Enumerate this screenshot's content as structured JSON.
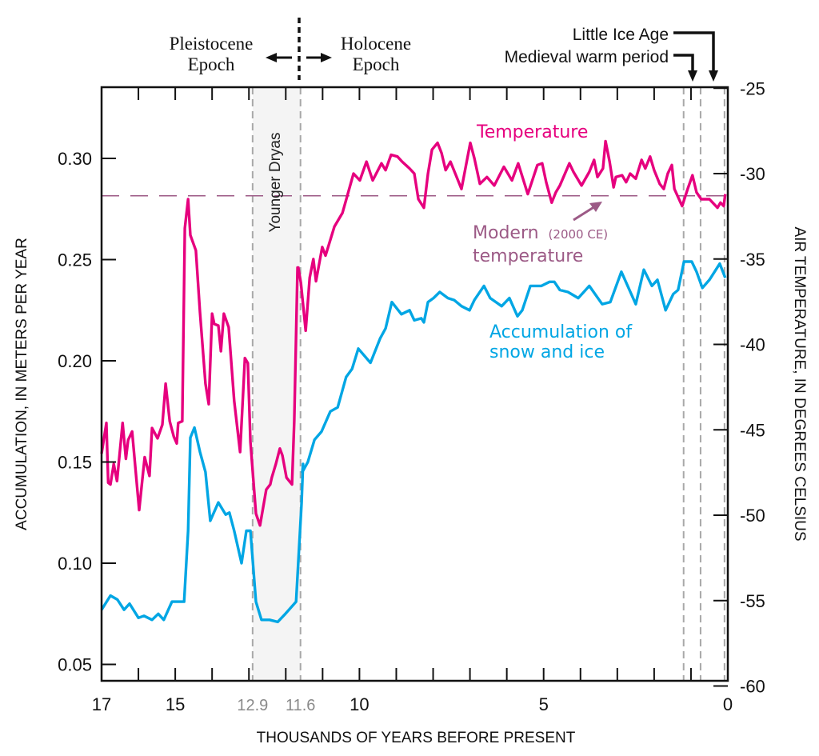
{
  "chart_data": {
    "type": "line",
    "xlabel": "THOUSANDS OF YEARS BEFORE PRESENT",
    "ylabel_left": "ACCUMULATION, IN METERS PER YEAR",
    "ylabel_right": "AIR TEMPERATURE, IN DEGREES CELSIUS",
    "xlim": [
      17,
      0
    ],
    "x_reversed": true,
    "ylim_left": [
      0.035,
      0.33
    ],
    "ylim_right": [
      -60,
      -25
    ],
    "x_ticks": [
      17,
      16,
      15,
      14,
      13,
      12,
      11,
      10,
      9,
      8,
      7,
      6,
      5,
      4,
      3,
      2,
      1,
      0
    ],
    "x_tick_labels": [
      {
        "value": 17,
        "label": "17"
      },
      {
        "value": 15,
        "label": "15"
      },
      {
        "value": 12.9,
        "label": "12.9",
        "muted": true
      },
      {
        "value": 11.6,
        "label": "11.6",
        "muted": true
      },
      {
        "value": 10,
        "label": "10"
      },
      {
        "value": 5,
        "label": "5"
      },
      {
        "value": 0,
        "label": "0"
      }
    ],
    "left_ticks": [
      {
        "value": 0.3,
        "label": "0.30"
      },
      {
        "value": 0.25,
        "label": "0.25"
      },
      {
        "value": 0.2,
        "label": "0.20"
      },
      {
        "value": 0.15,
        "label": "0.15"
      },
      {
        "value": 0.1,
        "label": "0.10"
      },
      {
        "value": 0.05,
        "label": "0.05"
      }
    ],
    "right_ticks": [
      {
        "value": -25,
        "label": "-25"
      },
      {
        "value": -30,
        "label": "-30"
      },
      {
        "value": -35,
        "label": "-35"
      },
      {
        "value": -40,
        "label": "-40"
      },
      {
        "value": -45,
        "label": "-45"
      },
      {
        "value": -50,
        "label": "-50"
      },
      {
        "value": -55,
        "label": "-55"
      },
      {
        "value": -60,
        "label": "-60"
      }
    ],
    "grid": false,
    "series": [
      {
        "name": "Temperature",
        "axis": "right",
        "color": "#e6007e",
        "x": [
          17.0,
          16.87,
          16.82,
          16.76,
          16.67,
          16.58,
          16.43,
          16.34,
          16.28,
          16.17,
          15.98,
          15.83,
          15.7,
          15.63,
          15.48,
          15.35,
          15.26,
          15.15,
          15.04,
          14.96,
          14.92,
          14.81,
          14.74,
          14.65,
          14.59,
          14.44,
          14.33,
          14.18,
          14.09,
          14.0,
          13.94,
          13.83,
          13.76,
          13.68,
          13.55,
          13.4,
          13.24,
          13.11,
          13.03,
          12.96,
          12.81,
          12.7,
          12.53,
          12.42,
          12.38,
          12.27,
          12.16,
          12.09,
          11.98,
          11.83,
          11.77,
          11.68,
          11.66,
          11.59,
          11.46,
          11.35,
          11.25,
          11.18,
          11.01,
          10.92,
          10.68,
          10.46,
          10.16,
          9.99,
          9.81,
          9.64,
          9.4,
          9.29,
          9.14,
          8.97,
          8.84,
          8.64,
          8.51,
          8.4,
          8.25,
          8.14,
          8.03,
          7.88,
          7.77,
          7.66,
          7.53,
          7.38,
          7.23,
          6.99,
          6.88,
          6.73,
          6.54,
          6.34,
          6.08,
          5.86,
          5.69,
          5.43,
          5.17,
          5.04,
          4.93,
          4.78,
          4.67,
          4.56,
          4.3,
          4.19,
          3.97,
          3.76,
          3.63,
          3.54,
          3.39,
          3.32,
          3.21,
          3.1,
          3.04,
          2.87,
          2.76,
          2.65,
          2.5,
          2.34,
          2.24,
          2.11,
          2.0,
          1.85,
          1.74,
          1.63,
          1.52,
          1.45,
          1.24,
          1.09,
          0.96,
          0.85,
          0.72,
          0.5,
          0.28,
          0.2,
          0.11,
          0.07
        ],
        "y": [
          -46.4,
          -44.6,
          -48.1,
          -48.2,
          -47.0,
          -48.0,
          -44.6,
          -46.7,
          -45.6,
          -45.1,
          -49.7,
          -46.6,
          -47.7,
          -44.9,
          -45.5,
          -44.7,
          -42.3,
          -44.5,
          -45.4,
          -45.8,
          -44.6,
          -44.5,
          -33.2,
          -31.5,
          -33.6,
          -34.5,
          -38.1,
          -42.3,
          -43.5,
          -38.2,
          -38.8,
          -38.9,
          -40.4,
          -38.2,
          -39.0,
          -43.3,
          -46.3,
          -40.8,
          -41.1,
          -45.7,
          -49.9,
          -50.6,
          -48.5,
          -48.2,
          -47.8,
          -47.0,
          -46.1,
          -46.5,
          -47.8,
          -48.2,
          -44.5,
          -35.5,
          -35.5,
          -36.4,
          -39.2,
          -36.1,
          -35.0,
          -36.3,
          -34.3,
          -34.8,
          -33.1,
          -32.3,
          -30.0,
          -30.4,
          -29.3,
          -30.4,
          -29.4,
          -29.8,
          -28.9,
          -29.0,
          -29.3,
          -29.7,
          -30.0,
          -31.5,
          -32.0,
          -30.0,
          -28.6,
          -28.2,
          -28.8,
          -29.8,
          -29.3,
          -30.1,
          -30.9,
          -28.2,
          -29.1,
          -30.6,
          -30.2,
          -30.7,
          -29.6,
          -30.4,
          -29.4,
          -31.2,
          -29.5,
          -29.4,
          -30.5,
          -31.7,
          -31.1,
          -30.7,
          -29.4,
          -29.9,
          -30.7,
          -29.9,
          -29.2,
          -30.2,
          -29.7,
          -28.1,
          -29.3,
          -30.8,
          -30.2,
          -30.1,
          -30.5,
          -30.0,
          -30.3,
          -29.2,
          -29.7,
          -29.0,
          -29.8,
          -30.6,
          -30.9,
          -30.0,
          -29.5,
          -30.9,
          -31.9,
          -30.9,
          -30.1,
          -31.1,
          -31.5,
          -31.5,
          -32.0,
          -31.7,
          -31.9,
          -31.2
        ]
      },
      {
        "name": "Accumulation of snow and ice",
        "axis": "left",
        "color": "#00a6e4",
        "x": [
          17.0,
          16.76,
          16.57,
          16.39,
          16.24,
          16.0,
          15.85,
          15.63,
          15.46,
          15.31,
          15.09,
          14.92,
          14.76,
          14.65,
          14.59,
          14.48,
          14.33,
          14.18,
          14.05,
          13.83,
          13.63,
          13.53,
          13.4,
          13.2,
          13.07,
          12.96,
          12.81,
          12.66,
          12.44,
          12.22,
          12.01,
          11.72,
          11.57,
          11.53,
          11.55,
          11.4,
          11.22,
          11.03,
          10.79,
          10.59,
          10.36,
          10.2,
          10.03,
          9.7,
          9.44,
          9.29,
          9.12,
          8.86,
          8.64,
          8.51,
          8.32,
          8.25,
          8.14,
          7.99,
          7.82,
          7.6,
          7.43,
          7.23,
          7.01,
          6.88,
          6.62,
          6.45,
          6.14,
          5.93,
          5.71,
          5.58,
          5.36,
          5.06,
          4.84,
          4.71,
          4.56,
          4.34,
          4.06,
          3.76,
          3.41,
          3.19,
          2.89,
          2.5,
          2.28,
          2.06,
          1.91,
          1.69,
          1.48,
          1.35,
          1.19,
          0.98,
          0.85,
          0.69,
          0.5,
          0.22,
          0.07
        ],
        "y": [
          0.077,
          0.084,
          0.082,
          0.077,
          0.08,
          0.073,
          0.074,
          0.072,
          0.075,
          0.072,
          0.081,
          0.081,
          0.081,
          0.116,
          0.162,
          0.167,
          0.155,
          0.145,
          0.121,
          0.13,
          0.124,
          0.125,
          0.116,
          0.1,
          0.116,
          0.116,
          0.081,
          0.072,
          0.072,
          0.071,
          0.075,
          0.081,
          0.13,
          0.149,
          0.145,
          0.15,
          0.161,
          0.165,
          0.175,
          0.177,
          0.192,
          0.196,
          0.206,
          0.199,
          0.211,
          0.216,
          0.229,
          0.223,
          0.225,
          0.22,
          0.221,
          0.219,
          0.229,
          0.231,
          0.234,
          0.231,
          0.23,
          0.227,
          0.225,
          0.23,
          0.237,
          0.231,
          0.227,
          0.231,
          0.222,
          0.225,
          0.237,
          0.237,
          0.239,
          0.239,
          0.235,
          0.234,
          0.231,
          0.237,
          0.228,
          0.229,
          0.244,
          0.228,
          0.245,
          0.237,
          0.24,
          0.225,
          0.233,
          0.235,
          0.249,
          0.249,
          0.244,
          0.236,
          0.24,
          0.248,
          0.241
        ]
      }
    ],
    "modern_temperature": -31.3,
    "younger_dryas": [
      12.9,
      11.6
    ],
    "reference_lines": [
      12.9,
      11.6,
      1.2,
      0.74,
      0.09
    ],
    "annotations": {
      "temperature": "Temperature",
      "modern_line1": "Modern",
      "modern_year": "(2000 CE)",
      "modern_line2": "temperature",
      "accum_line1": "Accumulation of",
      "accum_line2": "snow and ice",
      "younger_dryas": "Younger Dryas",
      "pleistocene_line1": "Pleistocene",
      "pleistocene_line2": "Epoch",
      "holocene_line1": "Holocene",
      "holocene_line2": "Epoch",
      "little_ice_age": "Little Ice Age",
      "medieval_warm": "Medieval warm period"
    },
    "colors": {
      "temperature": "#e6007e",
      "accumulation": "#00a6e4",
      "modern": "#9c5a86",
      "shade": "#f4f4f4",
      "ref_line": "#a8a8a8",
      "muted_tick": "#8a8a8a"
    }
  }
}
